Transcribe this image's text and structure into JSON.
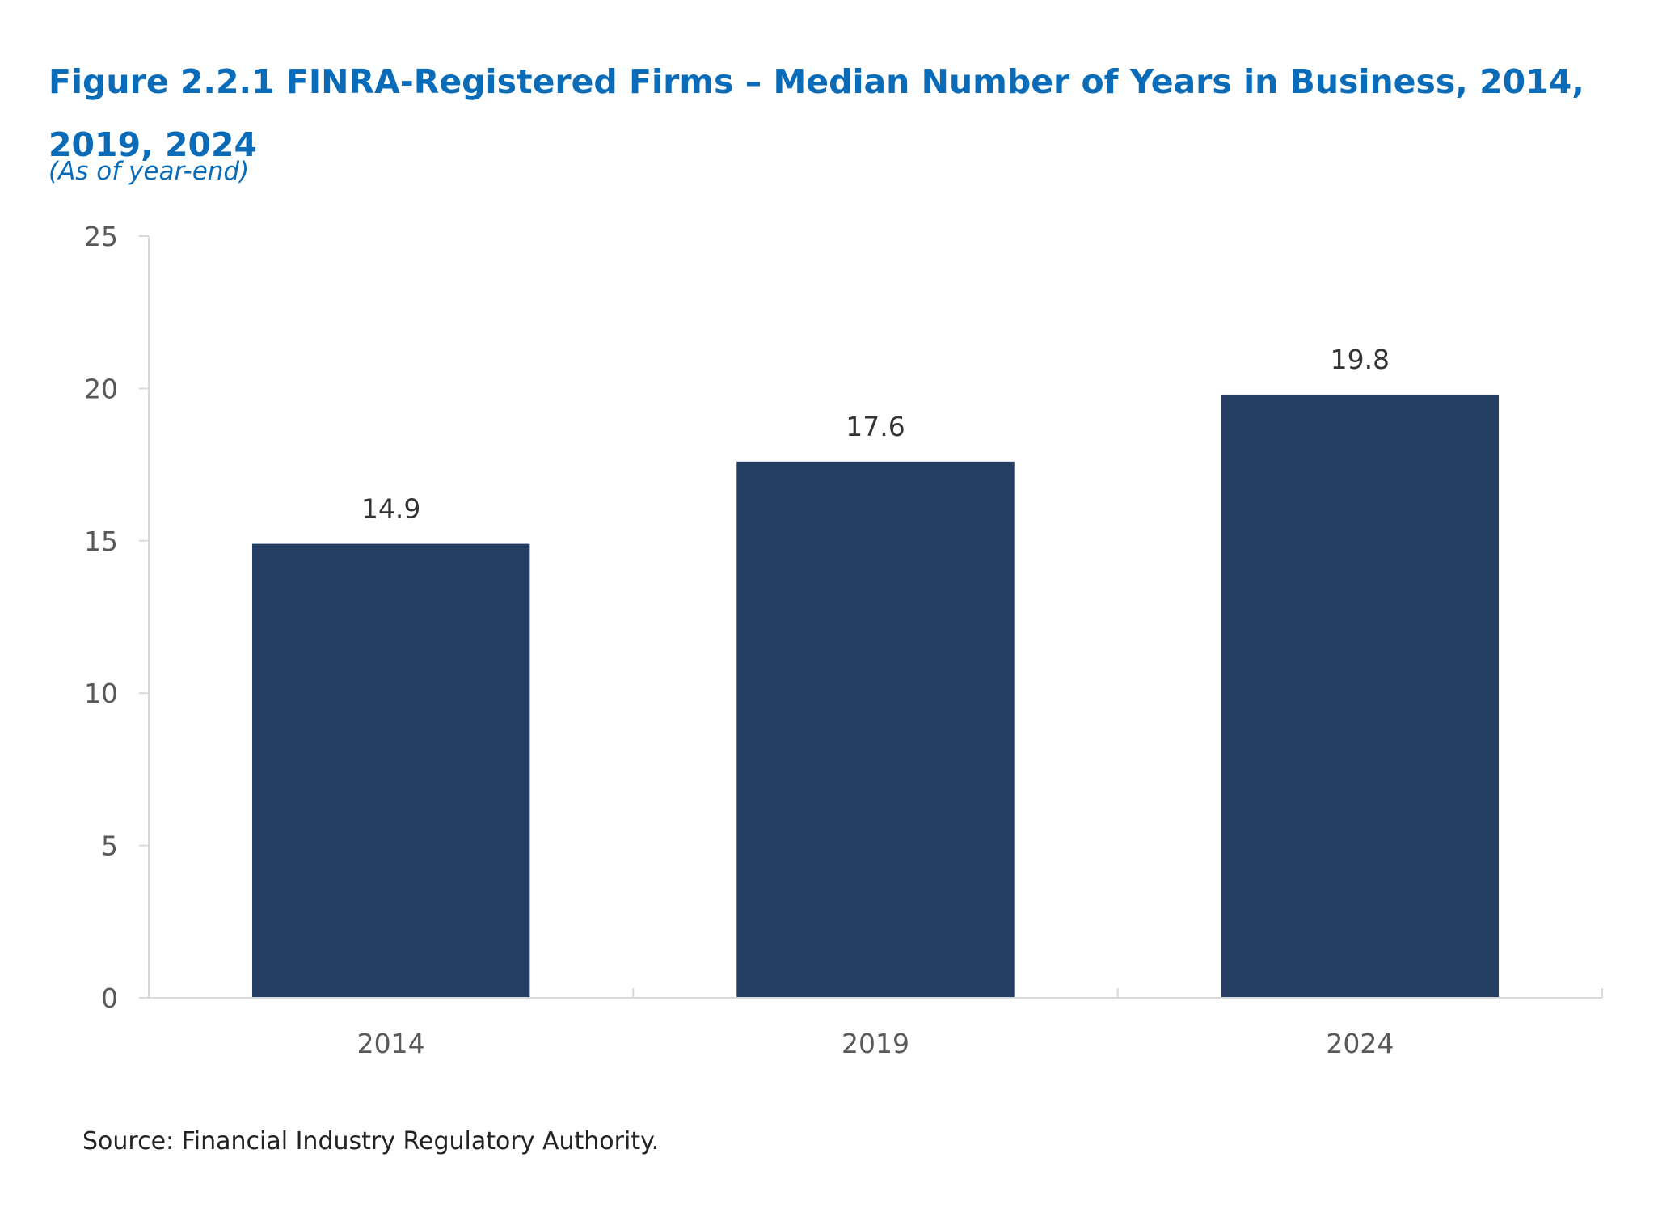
{
  "chart_data": {
    "type": "bar",
    "title": "Figure 2.2.1 FINRA-Registered Firms – Median Number of Years in Business, 2014, 2019, 2024",
    "subtitle": "(As of year-end)",
    "categories": [
      "2014",
      "2019",
      "2024"
    ],
    "values": [
      14.9,
      17.6,
      19.8
    ],
    "data_labels": [
      "14.9",
      "17.6",
      "19.8"
    ],
    "ylim": [
      0,
      25
    ],
    "yticks": [
      0,
      5,
      10,
      15,
      20,
      25
    ],
    "xlabel": "",
    "ylabel": "",
    "grid": false,
    "legend": "none",
    "bar_color": "#243e64",
    "axis_color": "#d9d9d9"
  },
  "source_note": "Source: Financial Industry Regulatory Authority."
}
